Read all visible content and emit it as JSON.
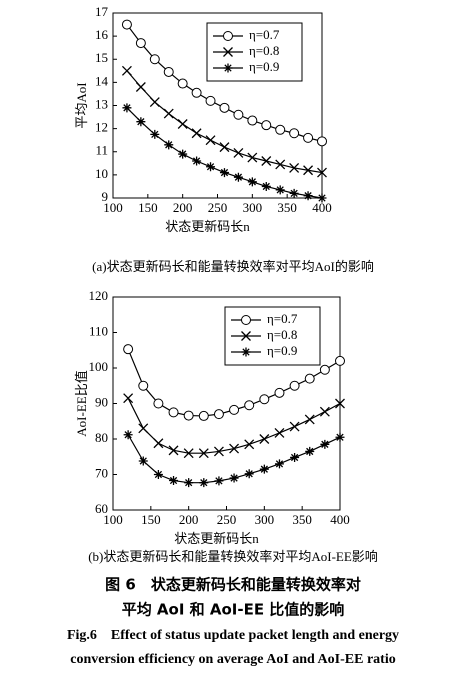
{
  "chart_data": [
    {
      "type": "line",
      "caption": "(a)状态更新码长和能量转换效率对平均AoI的影响",
      "x_label": "状态更新码长n",
      "y_label": "平均AoI",
      "xlim": [
        100,
        400
      ],
      "xticks": [
        100,
        150,
        200,
        250,
        300,
        350,
        400
      ],
      "ylim": [
        9,
        17
      ],
      "yticks": [
        9,
        10,
        11,
        12,
        13,
        14,
        15,
        16,
        17
      ],
      "legend": "upper right",
      "x": [
        120,
        140,
        160,
        180,
        200,
        220,
        240,
        260,
        280,
        300,
        320,
        340,
        360,
        380,
        400
      ],
      "series": [
        {
          "name": "η=0.7",
          "color": "#000000",
          "marker": "circle",
          "values": [
            16.5,
            15.7,
            15.0,
            14.45,
            13.95,
            13.55,
            13.2,
            12.9,
            12.6,
            12.35,
            12.15,
            11.95,
            11.8,
            11.6,
            11.45
          ]
        },
        {
          "name": "η=0.8",
          "color": "#000000",
          "marker": "x",
          "values": [
            14.5,
            13.8,
            13.15,
            12.65,
            12.2,
            11.8,
            11.5,
            11.2,
            10.95,
            10.75,
            10.6,
            10.45,
            10.3,
            10.2,
            10.1
          ]
        },
        {
          "name": "η=0.9",
          "color": "#000000",
          "marker": "star",
          "values": [
            12.9,
            12.3,
            11.75,
            11.3,
            10.9,
            10.6,
            10.35,
            10.1,
            9.9,
            9.7,
            9.5,
            9.35,
            9.2,
            9.1,
            9.0
          ]
        }
      ]
    },
    {
      "type": "line",
      "caption": "(b)状态更新码长和能量转换效率对平均AoI-EE影响",
      "x_label": "状态更新码长n",
      "y_label": "AoI-EE比值",
      "xlim": [
        100,
        400
      ],
      "xticks": [
        100,
        150,
        200,
        250,
        300,
        350,
        400
      ],
      "ylim": [
        60,
        120
      ],
      "yticks": [
        60,
        70,
        80,
        90,
        100,
        110,
        120
      ],
      "legend": "upper right",
      "x": [
        120,
        140,
        160,
        180,
        200,
        220,
        240,
        260,
        280,
        300,
        320,
        340,
        360,
        380,
        400
      ],
      "series": [
        {
          "name": "η=0.7",
          "color": "#000000",
          "marker": "circle",
          "values": [
            105.3,
            95,
            90,
            87.5,
            86.6,
            86.5,
            87,
            88.2,
            89.5,
            91.2,
            93,
            95,
            97,
            99.5,
            102
          ]
        },
        {
          "name": "η=0.8",
          "color": "#000000",
          "marker": "x",
          "values": [
            91.5,
            83,
            78.8,
            76.8,
            76,
            76,
            76.5,
            77.3,
            78.5,
            80,
            81.7,
            83.5,
            85.5,
            87.7,
            90
          ]
        },
        {
          "name": "η=0.9",
          "color": "#000000",
          "marker": "star",
          "values": [
            81.2,
            73.8,
            70,
            68.3,
            67.7,
            67.7,
            68.2,
            69,
            70.2,
            71.5,
            73,
            74.8,
            76.5,
            78.5,
            80.5
          ]
        }
      ]
    }
  ],
  "figure_caption": {
    "zh_lines": [
      "图 6　状态更新码长和能量转换效率对",
      "平均 AoI 和 AoI-EE 比值的影响"
    ],
    "en_lines": [
      "Fig.6　Effect of status update packet length and energy",
      "conversion efficiency on average AoI and AoI-EE ratio"
    ]
  }
}
